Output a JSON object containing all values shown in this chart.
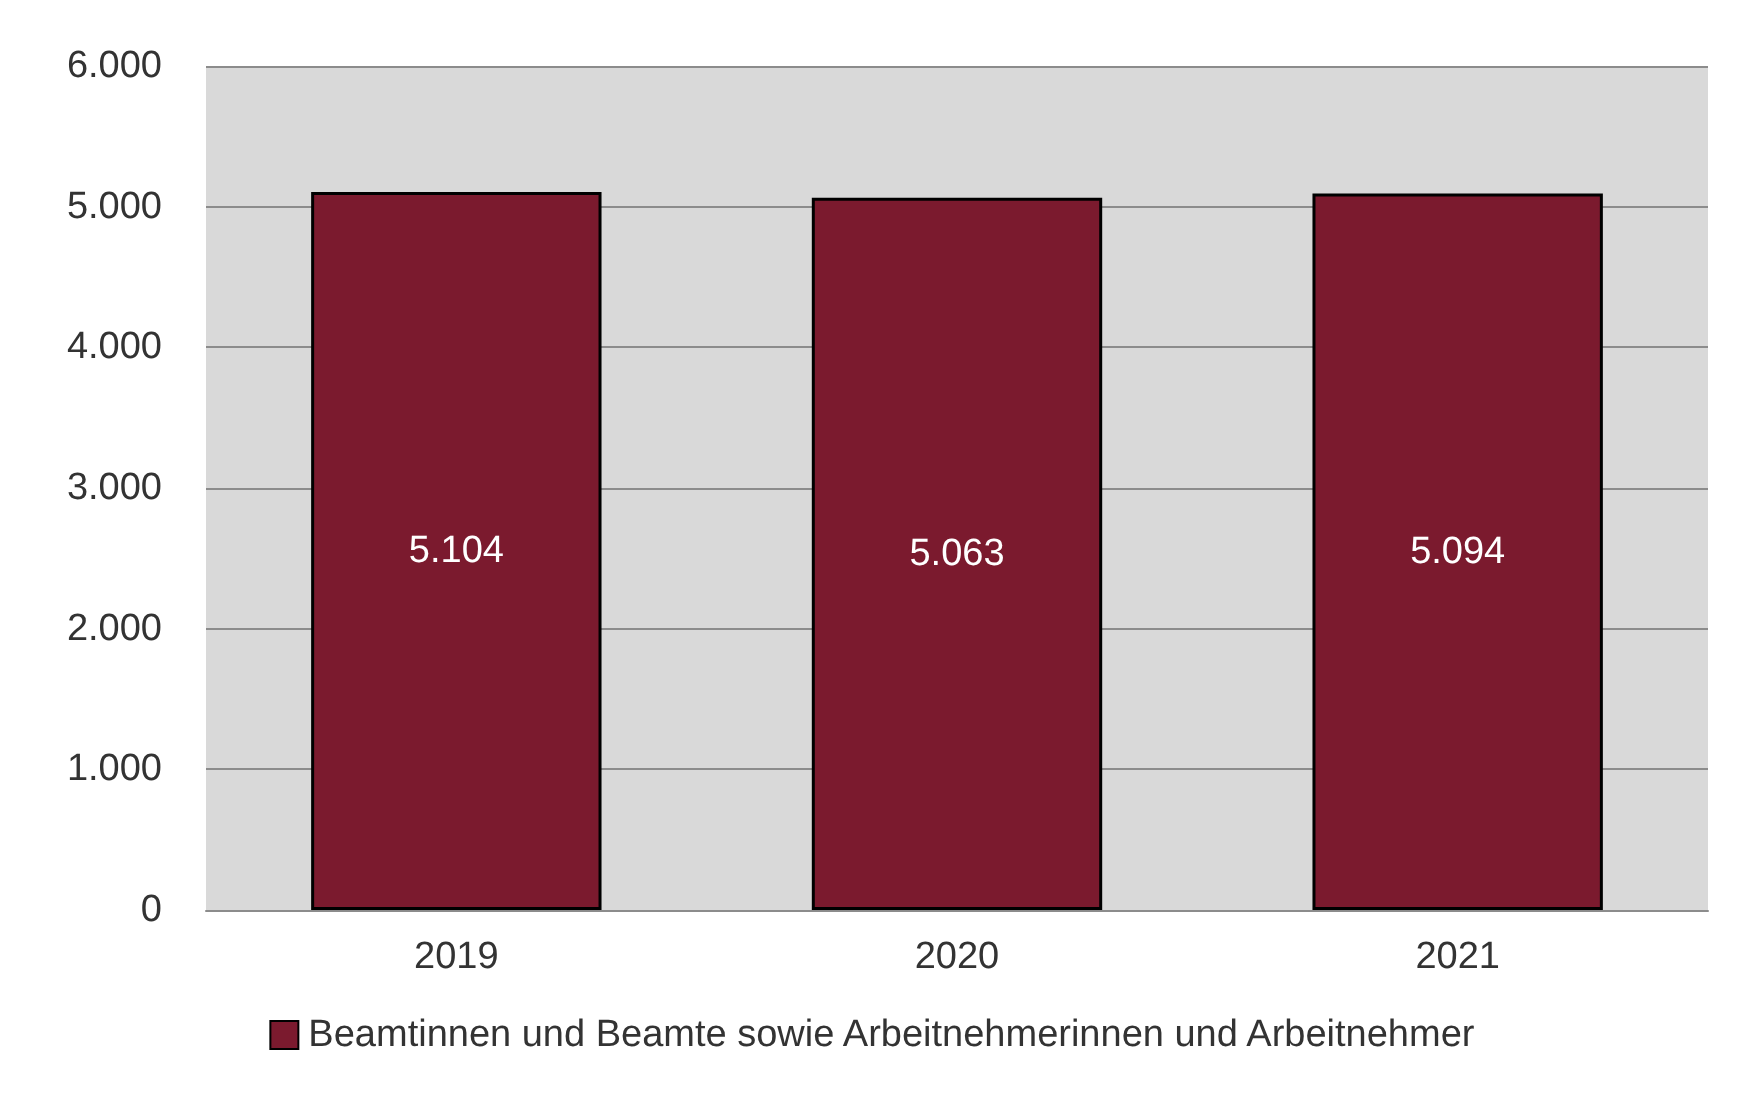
{
  "chart_data": {
    "type": "bar",
    "categories": [
      "2019",
      "2020",
      "2021"
    ],
    "series": [
      {
        "name": "Beamtinnen und Beamte sowie Arbeitnehmerinnen und Arbeitnehmer",
        "color": "#7b1a2e",
        "values": [
          5104,
          5063,
          5094
        ],
        "value_labels": [
          "5.104",
          "5.063",
          "5.094"
        ]
      }
    ],
    "ylim": [
      0,
      6000
    ],
    "yticks": [
      {
        "value": 0,
        "label": "0"
      },
      {
        "value": 1000,
        "label": "1.000"
      },
      {
        "value": 2000,
        "label": "2.000"
      },
      {
        "value": 3000,
        "label": "3.000"
      },
      {
        "value": 4000,
        "label": "4.000"
      },
      {
        "value": 5000,
        "label": "5.000"
      },
      {
        "value": 6000,
        "label": "6.000"
      }
    ],
    "grid": "y",
    "legend": "bottom"
  }
}
